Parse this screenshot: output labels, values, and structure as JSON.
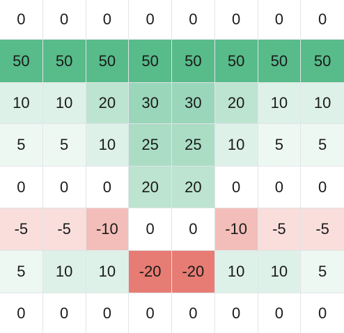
{
  "table": {
    "rows": [
      [
        "0",
        "0",
        "0",
        "0",
        "0",
        "0",
        "0",
        "0"
      ],
      [
        "50",
        "50",
        "50",
        "50",
        "50",
        "50",
        "50",
        "50"
      ],
      [
        "10",
        "10",
        "20",
        "30",
        "30",
        "20",
        "10",
        "10"
      ],
      [
        "5",
        "5",
        "10",
        "25",
        "25",
        "10",
        "5",
        "5"
      ],
      [
        "0",
        "0",
        "0",
        "20",
        "20",
        "0",
        "0",
        "0"
      ],
      [
        "-5",
        "-5",
        "-10",
        "0",
        "0",
        "-10",
        "-5",
        "-5"
      ],
      [
        "5",
        "10",
        "10",
        "-20",
        "-20",
        "10",
        "10",
        "5"
      ],
      [
        "0",
        "0",
        "0",
        "0",
        "0",
        "0",
        "0",
        "0"
      ]
    ]
  },
  "colors": {
    "positive_full": "#57bb8a",
    "negative_full": "#e67c73",
    "neutral": "#ffffff",
    "grid_line": "#e1e4e8"
  }
}
